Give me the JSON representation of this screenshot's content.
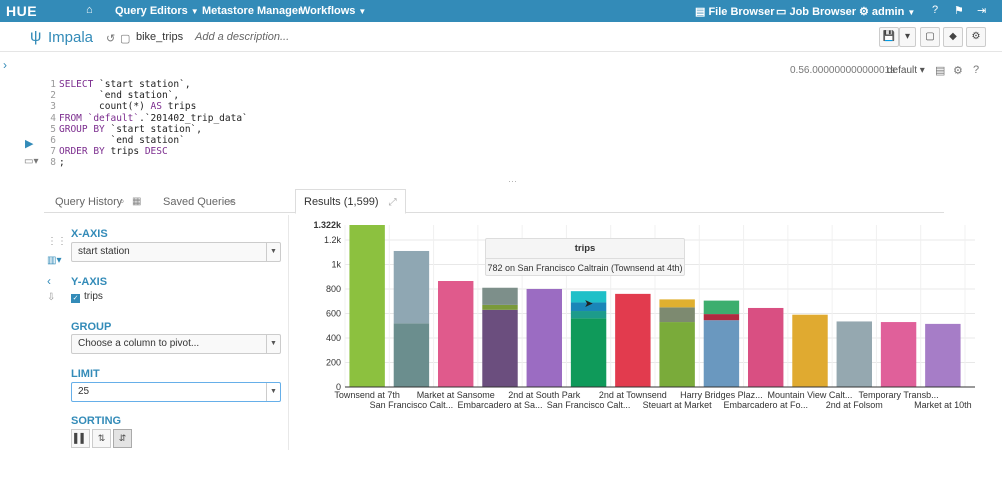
{
  "navbar": {
    "logo": "HUE",
    "items": [
      {
        "label": "Query Editors",
        "caret": true
      },
      {
        "label": "Metastore Manager",
        "caret": false
      },
      {
        "label": "Workflows",
        "caret": true
      }
    ],
    "file_browser": "File Browser",
    "job_browser": "Job Browser",
    "user": "admin"
  },
  "editor": {
    "app_name": "Impala",
    "query_name": "bike_trips",
    "description_placeholder": "Add a description...",
    "exec_time": "0.56.00000000000001s",
    "database": "default"
  },
  "code_lines": [
    [
      {
        "t": "kw",
        "v": "SELECT "
      },
      {
        "t": "id",
        "v": "`start station`,"
      }
    ],
    [
      {
        "t": "id",
        "v": "       `end station`,"
      }
    ],
    [
      {
        "t": "id",
        "v": "       count(*) "
      },
      {
        "t": "kw",
        "v": "AS"
      },
      {
        "t": "id",
        "v": " trips"
      }
    ],
    [
      {
        "t": "kw",
        "v": "FROM "
      },
      {
        "t": "kw",
        "v": "`default`"
      },
      {
        "t": "id",
        "v": ".`201402_trip_data`"
      }
    ],
    [
      {
        "t": "kw",
        "v": "GROUP BY "
      },
      {
        "t": "id",
        "v": "`start station`,"
      }
    ],
    [
      {
        "t": "id",
        "v": "         `end station`"
      }
    ],
    [
      {
        "t": "kw",
        "v": "ORDER BY "
      },
      {
        "t": "id",
        "v": "trips "
      },
      {
        "t": "kw",
        "v": "DESC"
      }
    ],
    [
      {
        "t": "id",
        "v": ";"
      }
    ]
  ],
  "tabs": {
    "query_history": "Query History",
    "saved_queries": "Saved Queries",
    "results": "Results (1,599)"
  },
  "settings": {
    "x_axis_label": "X-AXIS",
    "x_axis_value": "start station",
    "y_axis_label": "Y-AXIS",
    "y_axis_checkbox": "trips",
    "group_label": "GROUP",
    "group_placeholder": "Choose a column to pivot...",
    "limit_label": "LIMIT",
    "limit_value": "25",
    "sorting_label": "SORTING"
  },
  "tooltip": {
    "title": "trips",
    "text": "782 on San Francisco Caltrain (Townsend at 4th)"
  },
  "chart_data": {
    "type": "bar",
    "stacked": true,
    "ylim": [
      0,
      1322
    ],
    "y_max_label": "1.322k",
    "y_ticks": [
      {
        "value": 0,
        "label": "0"
      },
      {
        "value": 200,
        "label": "200"
      },
      {
        "value": 400,
        "label": "400"
      },
      {
        "value": 600,
        "label": "600"
      },
      {
        "value": 800,
        "label": "800"
      },
      {
        "value": 1000,
        "label": "1k"
      },
      {
        "value": 1200,
        "label": "1.2k"
      }
    ],
    "categories": [
      "Townsend at 7th",
      "San Francisco Calt...",
      "Market at Sansome",
      "Embarcadero at Sa...",
      "2nd at South Park",
      "San Francisco Calt...",
      "2nd at Townsend",
      "Steuart at Market",
      "Harry Bridges Plaz...",
      "Embarcadero at Fo...",
      "Mountain View Calt...",
      "2nd at Folsom",
      "Temporary Transb...",
      "Market at 10th"
    ],
    "segments": [
      [
        {
          "value": 1322,
          "color": "#8cc13f"
        }
      ],
      [
        {
          "value": 520,
          "color": "#6b8e8e"
        },
        {
          "value": 590,
          "color": "#8fa7b3"
        }
      ],
      [
        {
          "value": 865,
          "color": "#e05a8c"
        }
      ],
      [
        {
          "value": 630,
          "color": "#6b4e7e"
        },
        {
          "value": 40,
          "color": "#7a9a3a"
        },
        {
          "value": 140,
          "color": "#7d8f8a"
        }
      ],
      [
        {
          "value": 800,
          "color": "#9b6cc2"
        }
      ],
      [
        {
          "value": 560,
          "color": "#0f9a5a"
        },
        {
          "value": 60,
          "color": "#1d9b8b"
        },
        {
          "value": 70,
          "color": "#1a86b8"
        },
        {
          "value": 92,
          "color": "#1fc0c8"
        }
      ],
      [
        {
          "value": 760,
          "color": "#e23b4e"
        }
      ],
      [
        {
          "value": 530,
          "color": "#7aab3a"
        },
        {
          "value": 120,
          "color": "#7d8a70"
        },
        {
          "value": 65,
          "color": "#e0b030"
        }
      ],
      [
        {
          "value": 545,
          "color": "#6a98bf"
        },
        {
          "value": 50,
          "color": "#b02a40"
        },
        {
          "value": 110,
          "color": "#3cae6e"
        }
      ],
      [
        {
          "value": 645,
          "color": "#d94f82"
        }
      ],
      [
        {
          "value": 590,
          "color": "#e0aa30"
        }
      ],
      [
        {
          "value": 535,
          "color": "#95a8b0"
        }
      ],
      [
        {
          "value": 530,
          "color": "#e0609a"
        }
      ],
      [
        {
          "value": 515,
          "color": "#a67dc7"
        }
      ]
    ]
  }
}
